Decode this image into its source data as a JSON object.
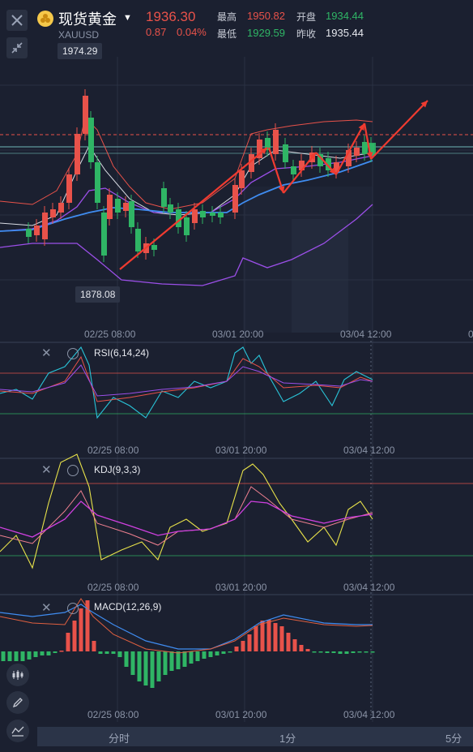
{
  "header": {
    "title": "现货黄金",
    "symbol": "XAUUSD",
    "price": "1936.30",
    "change": "0.87",
    "change_pct": "0.04%",
    "stats": {
      "high_label": "最高",
      "high_value": "1950.82",
      "low_label": "最低",
      "low_value": "1929.59",
      "open_label": "开盘",
      "open_value": "1934.44",
      "prev_label": "昨收",
      "prev_value": "1935.44"
    }
  },
  "price_tags": {
    "max": "1974.29",
    "min": "1878.08"
  },
  "time_labels": [
    "02/25 08:00",
    "03/01 20:00",
    "03/04 12:00"
  ],
  "main_axis_extra": "0",
  "indicators": {
    "rsi": "RSI(6,14,24)",
    "kdj": "KDJ(9,3,3)",
    "macd": "MACD(12,26,9)"
  },
  "timeframes": [
    "分时",
    "1分",
    "5分"
  ],
  "colors": {
    "background": "#1b2030",
    "up": "#e8524a",
    "down": "#2fb565",
    "ma_white": "#d9dce4",
    "ma_blue": "#3f8cf0",
    "ma_purple": "#9b4fe8",
    "annotation_red": "#f03b30"
  },
  "icons": {
    "close": "close-icon",
    "shrink": "shrink-icon",
    "gear": "gear-icon",
    "tools": [
      "candlestick-icon",
      "pencil-icon",
      "line-chart-icon"
    ]
  }
}
